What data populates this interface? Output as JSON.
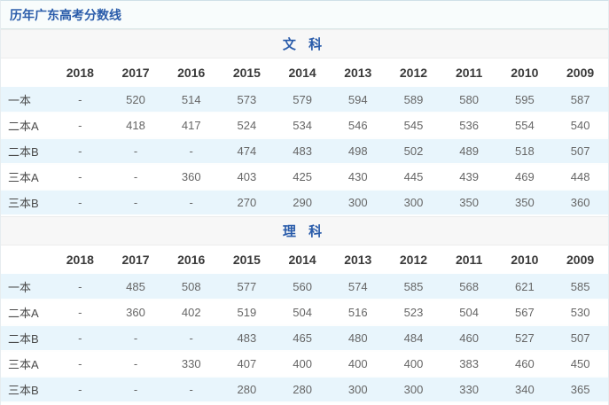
{
  "title": "历年广东高考分数线",
  "colors": {
    "accent_blue": "#2a5caa",
    "stripe_blue": "#e8f5fc",
    "section_bar_bg": "#f7f7f7",
    "header_text": "#3a3a3a",
    "value_text": "#666666"
  },
  "sections": [
    {
      "label": "文 科",
      "years": [
        "2018",
        "2017",
        "2016",
        "2015",
        "2014",
        "2013",
        "2012",
        "2011",
        "2010",
        "2009"
      ],
      "rows": [
        {
          "label": "一本",
          "values": [
            "-",
            "520",
            "514",
            "573",
            "579",
            "594",
            "589",
            "580",
            "595",
            "587"
          ]
        },
        {
          "label": "二本A",
          "values": [
            "-",
            "418",
            "417",
            "524",
            "534",
            "546",
            "545",
            "536",
            "554",
            "540"
          ]
        },
        {
          "label": "二本B",
          "values": [
            "-",
            "-",
            "-",
            "474",
            "483",
            "498",
            "502",
            "489",
            "518",
            "507"
          ]
        },
        {
          "label": "三本A",
          "values": [
            "-",
            "-",
            "360",
            "403",
            "425",
            "430",
            "445",
            "439",
            "469",
            "448"
          ]
        },
        {
          "label": "三本B",
          "values": [
            "-",
            "-",
            "-",
            "270",
            "290",
            "300",
            "300",
            "350",
            "350",
            "360"
          ]
        }
      ]
    },
    {
      "label": "理 科",
      "years": [
        "2018",
        "2017",
        "2016",
        "2015",
        "2014",
        "2013",
        "2012",
        "2011",
        "2010",
        "2009"
      ],
      "rows": [
        {
          "label": "一本",
          "values": [
            "-",
            "485",
            "508",
            "577",
            "560",
            "574",
            "585",
            "568",
            "621",
            "585"
          ]
        },
        {
          "label": "二本A",
          "values": [
            "-",
            "360",
            "402",
            "519",
            "504",
            "516",
            "523",
            "504",
            "567",
            "530"
          ]
        },
        {
          "label": "二本B",
          "values": [
            "-",
            "-",
            "-",
            "483",
            "465",
            "480",
            "484",
            "460",
            "527",
            "507"
          ]
        },
        {
          "label": "三本A",
          "values": [
            "-",
            "-",
            "330",
            "407",
            "400",
            "400",
            "400",
            "383",
            "460",
            "450"
          ]
        },
        {
          "label": "三本B",
          "values": [
            "-",
            "-",
            "-",
            "280",
            "280",
            "300",
            "300",
            "330",
            "340",
            "365"
          ]
        }
      ]
    }
  ]
}
